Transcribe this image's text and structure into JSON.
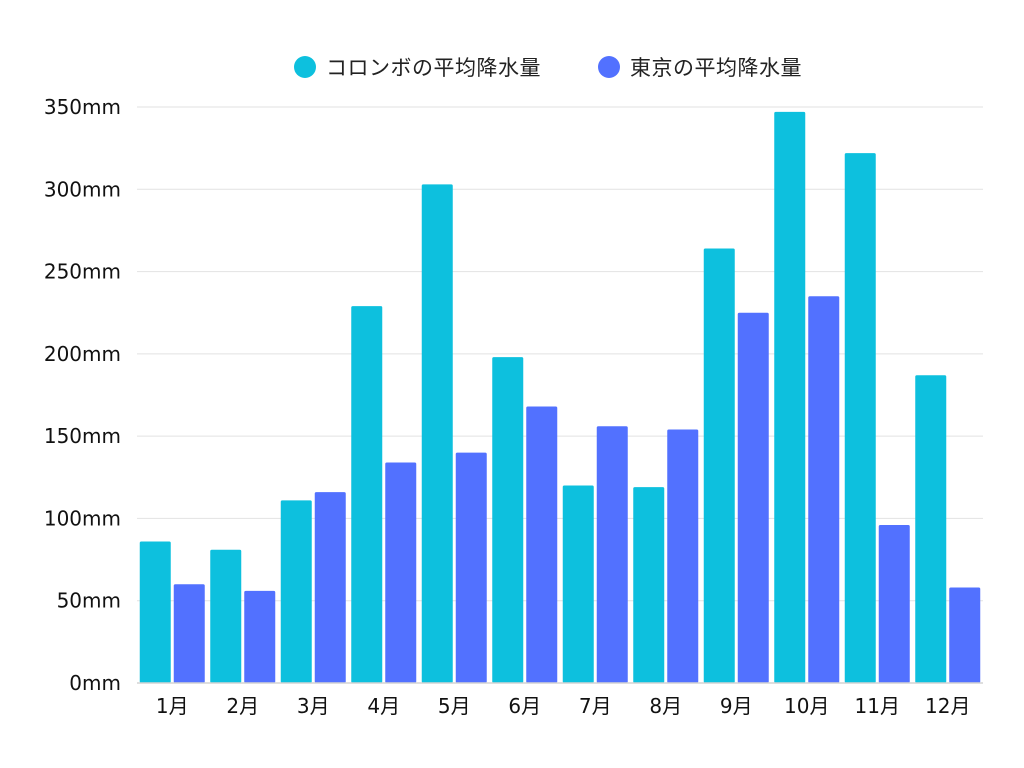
{
  "chart_data": {
    "type": "bar",
    "title": "",
    "xlabel": "",
    "ylabel": "",
    "categories": [
      "1月",
      "2月",
      "3月",
      "4月",
      "5月",
      "6月",
      "7月",
      "8月",
      "9月",
      "10月",
      "11月",
      "12月"
    ],
    "series": [
      {
        "name": "コロンボの平均降水量",
        "color": "#0dc0de",
        "values": [
          86,
          81,
          111,
          229,
          303,
          198,
          120,
          119,
          264,
          347,
          322,
          187
        ]
      },
      {
        "name": "東京の平均降水量",
        "color": "#5271ff",
        "values": [
          60,
          56,
          116,
          134,
          140,
          168,
          156,
          154,
          225,
          235,
          96,
          58
        ]
      }
    ],
    "ylim": [
      0,
      350
    ],
    "yticks": [
      0,
      50,
      100,
      150,
      200,
      250,
      300,
      350
    ],
    "ytick_suffix": "mm",
    "grid": true,
    "legend_position": "top-center"
  }
}
